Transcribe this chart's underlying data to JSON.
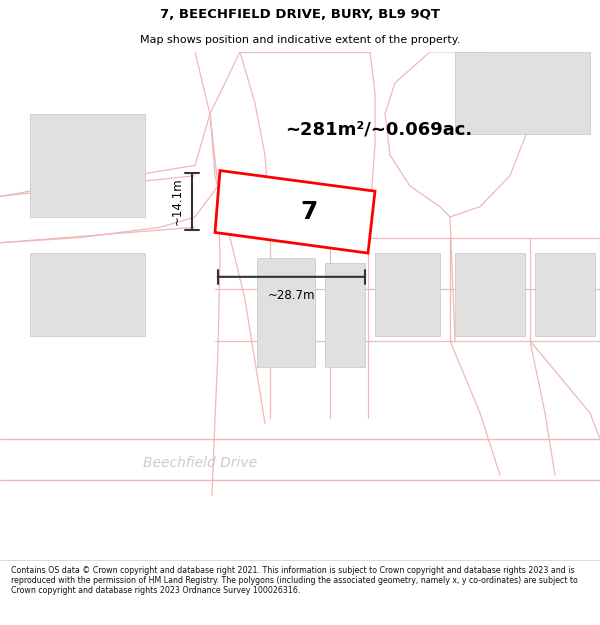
{
  "title": "7, BEECHFIELD DRIVE, BURY, BL9 9QT",
  "subtitle": "Map shows position and indicative extent of the property.",
  "area_text": "~281m²/~0.069ac.",
  "width_label": "~28.7m",
  "height_label": "~14.1m",
  "property_number": "7",
  "street_name": "Beechfield Drive",
  "footer_text": "Contains OS data © Crown copyright and database right 2021. This information is subject to Crown copyright and database rights 2023 and is reproduced with the permission of HM Land Registry. The polygons (including the associated geometry, namely x, y co-ordinates) are subject to Crown copyright and database rights 2023 Ordnance Survey 100026316.",
  "bg_color": "#ffffff",
  "map_bg": "#ffffff",
  "plot_color": "#ff0000",
  "road_line_color": "#f0b8b8",
  "building_fill": "#e0e0e0",
  "building_edge": "#cccccc"
}
